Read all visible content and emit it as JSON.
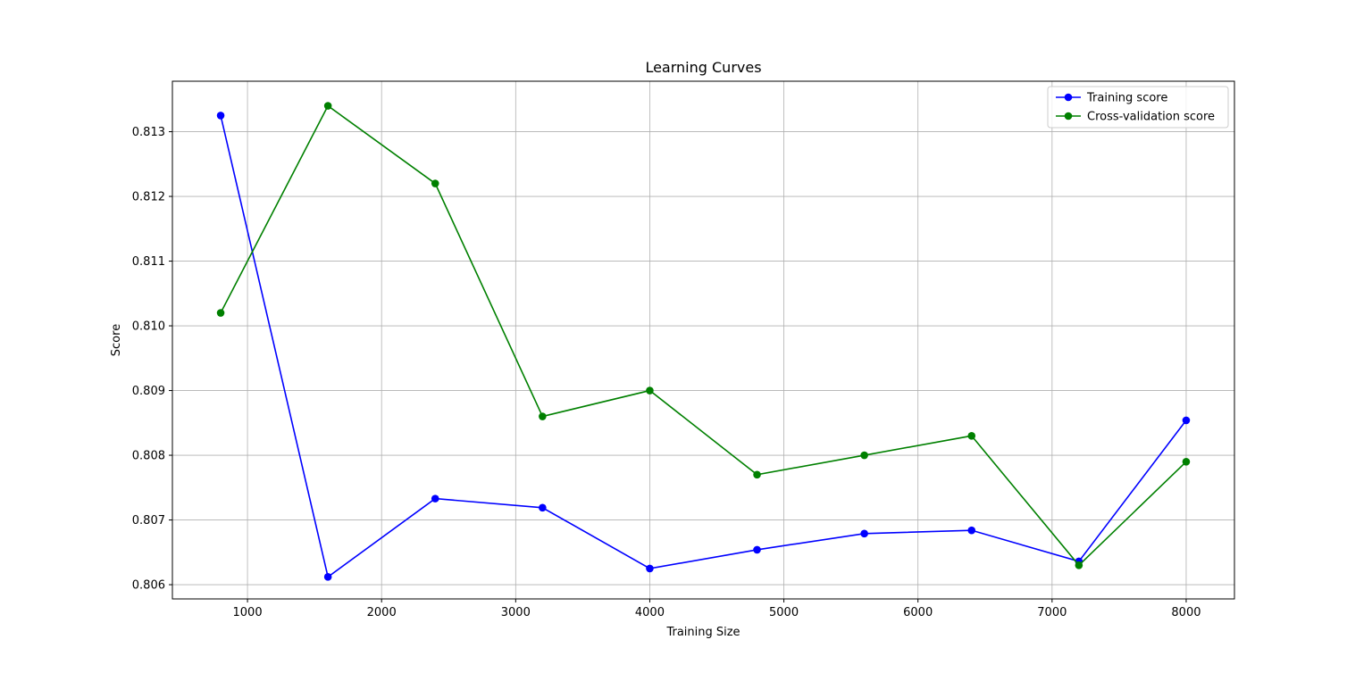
{
  "chart_data": {
    "type": "line",
    "title": "Learning Curves",
    "xlabel": "Training Size",
    "ylabel": "Score",
    "x": [
      800,
      1600,
      2400,
      3200,
      4000,
      4800,
      5600,
      6400,
      7200,
      8000
    ],
    "xlim": [
      440,
      8360
    ],
    "ylim": [
      0.80578,
      0.81378
    ],
    "xticks": [
      1000,
      2000,
      3000,
      4000,
      5000,
      6000,
      7000,
      8000
    ],
    "yticks": [
      0.806,
      0.807,
      0.808,
      0.809,
      0.81,
      0.811,
      0.812,
      0.813
    ],
    "grid": true,
    "legend_position": "top-right",
    "series": [
      {
        "name": "Training score",
        "color": "#0000ff",
        "marker": "circle",
        "values": [
          0.81325,
          0.80612,
          0.80733,
          0.80719,
          0.80625,
          0.80654,
          0.80679,
          0.80684,
          0.80636,
          0.80854
        ]
      },
      {
        "name": "Cross-validation score",
        "color": "#008000",
        "marker": "circle",
        "values": [
          0.8102,
          0.8134,
          0.8122,
          0.8086,
          0.809,
          0.8077,
          0.808,
          0.8083,
          0.8063,
          0.8079
        ]
      }
    ]
  }
}
